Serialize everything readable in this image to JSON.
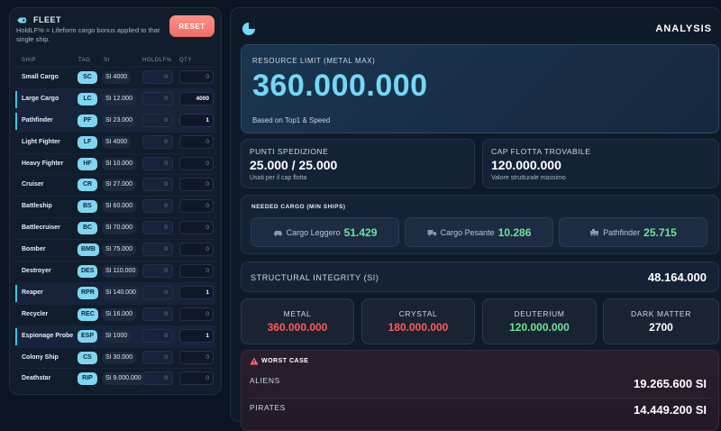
{
  "fleet": {
    "title": "FLEET",
    "note": "HoldLF% = Lifeform cargo bonus applied to that single ship.",
    "reset_label": "RESET",
    "columns": {
      "ship": "SHIP",
      "tag": "TAG",
      "si": "SI",
      "hold": "HOLDLF%",
      "qty": "QTY"
    },
    "rows": [
      {
        "ship": "Small Cargo",
        "tag": "SC",
        "si": "SI 4000",
        "hold": "0",
        "qty": "0",
        "active": false
      },
      {
        "ship": "Large Cargo",
        "tag": "LC",
        "si": "SI 12.000",
        "hold": "0",
        "qty": "4000",
        "active": true
      },
      {
        "ship": "Pathfinder",
        "tag": "PF",
        "si": "SI 23.000",
        "hold": "0",
        "qty": "1",
        "active": true
      },
      {
        "ship": "Light Fighter",
        "tag": "LF",
        "si": "SI 4000",
        "hold": "0",
        "qty": "0",
        "active": false
      },
      {
        "ship": "Heavy Fighter",
        "tag": "HF",
        "si": "SI 10.000",
        "hold": "0",
        "qty": "0",
        "active": false
      },
      {
        "ship": "Cruiser",
        "tag": "CR",
        "si": "SI 27.000",
        "hold": "0",
        "qty": "0",
        "active": false
      },
      {
        "ship": "Battleship",
        "tag": "BS",
        "si": "SI 60.000",
        "hold": "0",
        "qty": "0",
        "active": false
      },
      {
        "ship": "Battlecruiser",
        "tag": "BC",
        "si": "SI 70.000",
        "hold": "0",
        "qty": "0",
        "active": false
      },
      {
        "ship": "Bomber",
        "tag": "BMB",
        "si": "SI 75.000",
        "hold": "0",
        "qty": "0",
        "active": false
      },
      {
        "ship": "Destroyer",
        "tag": "DES",
        "si": "SI 110.000",
        "hold": "0",
        "qty": "0",
        "active": false
      },
      {
        "ship": "Reaper",
        "tag": "RPR",
        "si": "SI 140.000",
        "hold": "0",
        "qty": "1",
        "active": true
      },
      {
        "ship": "Recycler",
        "tag": "REC",
        "si": "SI 16.000",
        "hold": "0",
        "qty": "0",
        "active": false
      },
      {
        "ship": "Espionage Probe",
        "tag": "ESP",
        "si": "SI 1000",
        "hold": "0",
        "qty": "1",
        "active": true
      },
      {
        "ship": "Colony Ship",
        "tag": "CS",
        "si": "SI 30.000",
        "hold": "0",
        "qty": "0",
        "active": false
      },
      {
        "ship": "Deathstar",
        "tag": "RIP",
        "si": "SI 9.000.000",
        "hold": "0",
        "qty": "0",
        "active": false
      }
    ]
  },
  "analysis": {
    "title": "ANALYSIS",
    "resource_limit": {
      "label": "RESOURCE LIMIT (METAL MAX)",
      "value": "360.000.000",
      "sub": "Based on Top1 & Speed"
    },
    "punti": {
      "label": "PUNTI SPEDIZIONE",
      "value": "25.000 / 25.000",
      "sub": "Usati per il cap flotta"
    },
    "cap": {
      "label": "CAP FLOTTA TROVABILE",
      "value": "120.000.000",
      "sub": "Valore strutturale massimo"
    },
    "cargo": {
      "label": "NEEDED CARGO (MIN SHIPS)",
      "items": [
        {
          "name": "Cargo Leggero",
          "value": "51.429",
          "icon": "car-icon"
        },
        {
          "name": "Cargo Pesante",
          "value": "10.286",
          "icon": "truck-icon"
        },
        {
          "name": "Pathfinder",
          "value": "25.715",
          "icon": "rover-icon"
        }
      ]
    },
    "structural": {
      "label": "STRUCTURAL INTEGRITY (SI)",
      "value": "48.164.000"
    },
    "resources": [
      {
        "label": "METAL",
        "value": "360.000.000",
        "color": "#ff5a5f"
      },
      {
        "label": "CRYSTAL",
        "value": "180.000.000",
        "color": "#ff5a5f"
      },
      {
        "label": "DEUTERIUM",
        "value": "120.000.000",
        "color": "#6fe29a"
      },
      {
        "label": "DARK MATTER",
        "value": "2700",
        "color": "#ffffff"
      }
    ],
    "worst_case": {
      "label": "WORST CASE",
      "items": [
        {
          "name": "ALIENS",
          "value": "19.265.600 SI"
        },
        {
          "name": "PIRATES",
          "value": "14.449.200 SI"
        }
      ]
    }
  },
  "colors": {
    "accent": "#74d8f5",
    "tag_bg": "#7fd6f2",
    "reset": "#ee6f67",
    "good": "#6fe29a",
    "bad": "#ff5a5f"
  }
}
